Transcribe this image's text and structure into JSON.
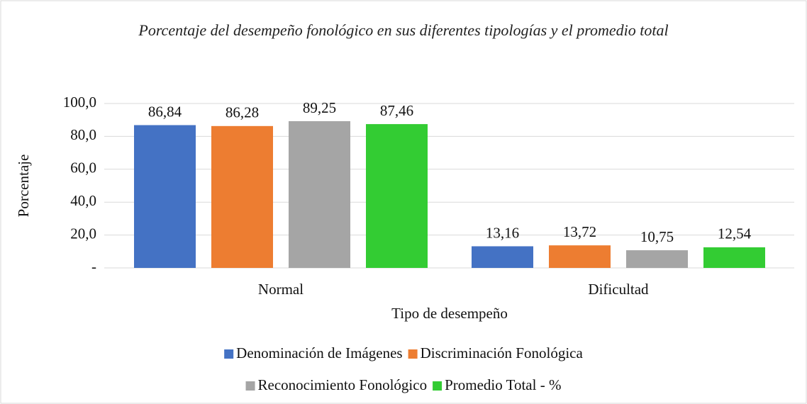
{
  "chart_data": {
    "type": "bar",
    "title": "Porcentaje del desempeño fonológico en sus diferentes tipologías y el promedio total",
    "xlabel": "Tipo de desempeño",
    "ylabel": "Porcentaje",
    "categories": [
      "Normal",
      "Dificultad"
    ],
    "series": [
      {
        "name": "Denominación de Imágenes",
        "color": "#4472c4",
        "values": [
          86.84,
          13.16
        ],
        "value_labels": [
          "86,84",
          "13,16"
        ]
      },
      {
        "name": "Discriminación Fonológica",
        "color": "#ed7d31",
        "values": [
          86.28,
          13.72
        ],
        "value_labels": [
          "86,28",
          "13,72"
        ]
      },
      {
        "name": "Reconocimiento Fonológico",
        "color": "#a5a5a5",
        "values": [
          89.25,
          10.75
        ],
        "value_labels": [
          "89,25",
          "10,75"
        ]
      },
      {
        "name": "Promedio Total - %",
        "color": "#33cc33",
        "values": [
          87.46,
          12.54
        ],
        "value_labels": [
          "87,46",
          "12,54"
        ]
      }
    ],
    "ylim": [
      0,
      100
    ],
    "yticks": [
      {
        "value": 0,
        "label": "-"
      },
      {
        "value": 20,
        "label": "20,0"
      },
      {
        "value": 40,
        "label": "40,0"
      },
      {
        "value": 60,
        "label": "60,0"
      },
      {
        "value": 80,
        "label": "80,0"
      },
      {
        "value": 100,
        "label": "100,0"
      }
    ],
    "grid": true,
    "legend": "bottom"
  }
}
